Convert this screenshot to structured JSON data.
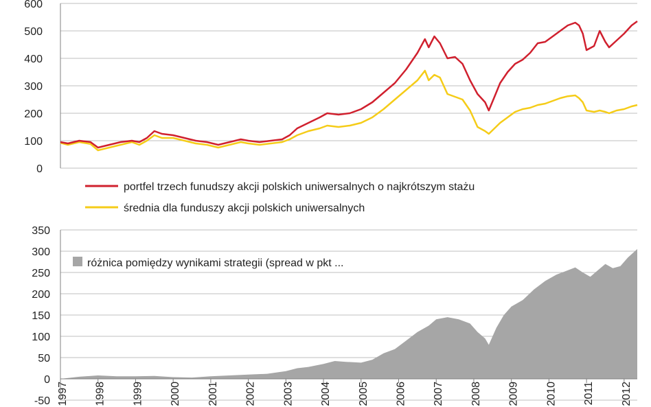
{
  "chart_data": [
    {
      "type": "line",
      "title": "",
      "xlabel": "",
      "ylabel": "",
      "x_range": [
        1997.0,
        2012.35
      ],
      "ylim": [
        0,
        600
      ],
      "yticks": [
        "0",
        "100",
        "200",
        "300",
        "400",
        "500",
        "600"
      ],
      "grid": true,
      "legend_position": "bottom",
      "series": [
        {
          "name": "portfel trzech funudszy akcji polskich uniwersalnych o najkrótszym stażu",
          "color": "#d0202e",
          "x": [
            1997.0,
            1997.2,
            1997.5,
            1997.8,
            1998.0,
            1998.3,
            1998.6,
            1998.9,
            1999.1,
            1999.3,
            1999.5,
            1999.7,
            2000.0,
            2000.3,
            2000.6,
            2000.9,
            2001.2,
            2001.5,
            2001.8,
            2002.0,
            2002.3,
            2002.6,
            2002.9,
            2003.1,
            2003.3,
            2003.6,
            2003.9,
            2004.1,
            2004.4,
            2004.7,
            2005.0,
            2005.3,
            2005.6,
            2005.9,
            2006.2,
            2006.5,
            2006.7,
            2006.8,
            2006.95,
            2007.1,
            2007.3,
            2007.5,
            2007.7,
            2007.9,
            2008.1,
            2008.3,
            2008.4,
            2008.55,
            2008.7,
            2008.9,
            2009.1,
            2009.3,
            2009.5,
            2009.7,
            2009.9,
            2010.1,
            2010.3,
            2010.5,
            2010.7,
            2010.8,
            2010.9,
            2011.0,
            2011.2,
            2011.35,
            2011.5,
            2011.6,
            2011.8,
            2012.0,
            2012.2,
            2012.35
          ],
          "y": [
            95,
            90,
            100,
            95,
            75,
            85,
            95,
            100,
            95,
            110,
            135,
            125,
            120,
            110,
            100,
            95,
            85,
            95,
            105,
            100,
            95,
            100,
            105,
            120,
            145,
            165,
            185,
            200,
            195,
            200,
            215,
            240,
            275,
            310,
            360,
            420,
            470,
            440,
            480,
            455,
            400,
            405,
            380,
            320,
            270,
            240,
            210,
            260,
            310,
            350,
            380,
            395,
            420,
            455,
            460,
            480,
            500,
            520,
            530,
            520,
            490,
            430,
            445,
            500,
            460,
            440,
            465,
            490,
            520,
            535
          ]
        },
        {
          "name": "średnia dla funduszy akcji polskich uniwersalnych",
          "color": "#f5cc18",
          "x": [
            1997.0,
            1997.2,
            1997.5,
            1997.8,
            1998.0,
            1998.3,
            1998.6,
            1998.9,
            1999.1,
            1999.3,
            1999.5,
            1999.7,
            2000.0,
            2000.3,
            2000.6,
            2000.9,
            2001.2,
            2001.5,
            2001.8,
            2002.0,
            2002.3,
            2002.6,
            2002.9,
            2003.1,
            2003.3,
            2003.6,
            2003.9,
            2004.1,
            2004.4,
            2004.7,
            2005.0,
            2005.3,
            2005.6,
            2005.9,
            2006.2,
            2006.5,
            2006.7,
            2006.8,
            2006.95,
            2007.1,
            2007.3,
            2007.5,
            2007.7,
            2007.9,
            2008.1,
            2008.3,
            2008.4,
            2008.55,
            2008.7,
            2008.9,
            2009.1,
            2009.3,
            2009.5,
            2009.7,
            2009.9,
            2010.1,
            2010.3,
            2010.5,
            2010.7,
            2010.8,
            2010.9,
            2011.0,
            2011.2,
            2011.35,
            2011.5,
            2011.6,
            2011.8,
            2012.0,
            2012.2,
            2012.35
          ],
          "y": [
            92,
            85,
            95,
            88,
            65,
            75,
            85,
            95,
            85,
            100,
            120,
            110,
            110,
            100,
            90,
            85,
            75,
            85,
            95,
            90,
            85,
            90,
            95,
            105,
            120,
            135,
            145,
            155,
            150,
            155,
            165,
            185,
            215,
            250,
            285,
            320,
            355,
            320,
            340,
            330,
            270,
            260,
            250,
            210,
            150,
            135,
            125,
            145,
            165,
            185,
            205,
            215,
            220,
            230,
            235,
            245,
            255,
            262,
            265,
            255,
            240,
            210,
            205,
            210,
            205,
            200,
            210,
            215,
            225,
            230
          ]
        }
      ]
    },
    {
      "type": "area",
      "title": "",
      "xlabel": "",
      "ylabel": "",
      "x_range": [
        1997.0,
        2012.35
      ],
      "ylim": [
        -50,
        350
      ],
      "yticks": [
        "-50",
        "0",
        "50",
        "100",
        "150",
        "200",
        "250",
        "300",
        "350"
      ],
      "xticks": [
        "1997",
        "1998",
        "1999",
        "2000",
        "2001",
        "2002",
        "2003",
        "2004",
        "2005",
        "2006",
        "2007",
        "2008",
        "2009",
        "2010",
        "2011",
        "2012"
      ],
      "grid": true,
      "legend_position": "top-left",
      "series": [
        {
          "name": "różnica pomiędzy wynikami strategii (spread w pkt ...",
          "color": "#a6a6a6",
          "x": [
            1997.0,
            1997.5,
            1998.0,
            1998.5,
            1999.0,
            1999.5,
            2000.0,
            2000.5,
            2001.0,
            2001.5,
            2002.0,
            2002.5,
            2003.0,
            2003.3,
            2003.6,
            2004.0,
            2004.3,
            2004.6,
            2005.0,
            2005.3,
            2005.6,
            2005.9,
            2006.2,
            2006.5,
            2006.8,
            2007.0,
            2007.3,
            2007.6,
            2007.9,
            2008.1,
            2008.3,
            2008.4,
            2008.6,
            2008.8,
            2009.0,
            2009.3,
            2009.6,
            2009.9,
            2010.2,
            2010.5,
            2010.7,
            2010.9,
            2011.1,
            2011.3,
            2011.5,
            2011.7,
            2011.9,
            2012.1,
            2012.35
          ],
          "y": [
            0,
            5,
            8,
            6,
            6,
            7,
            4,
            3,
            6,
            8,
            10,
            12,
            18,
            25,
            28,
            35,
            42,
            40,
            38,
            45,
            60,
            70,
            90,
            110,
            125,
            140,
            145,
            140,
            130,
            110,
            95,
            80,
            120,
            150,
            170,
            185,
            210,
            230,
            245,
            255,
            262,
            250,
            240,
            255,
            270,
            260,
            265,
            285,
            305
          ]
        }
      ]
    }
  ]
}
